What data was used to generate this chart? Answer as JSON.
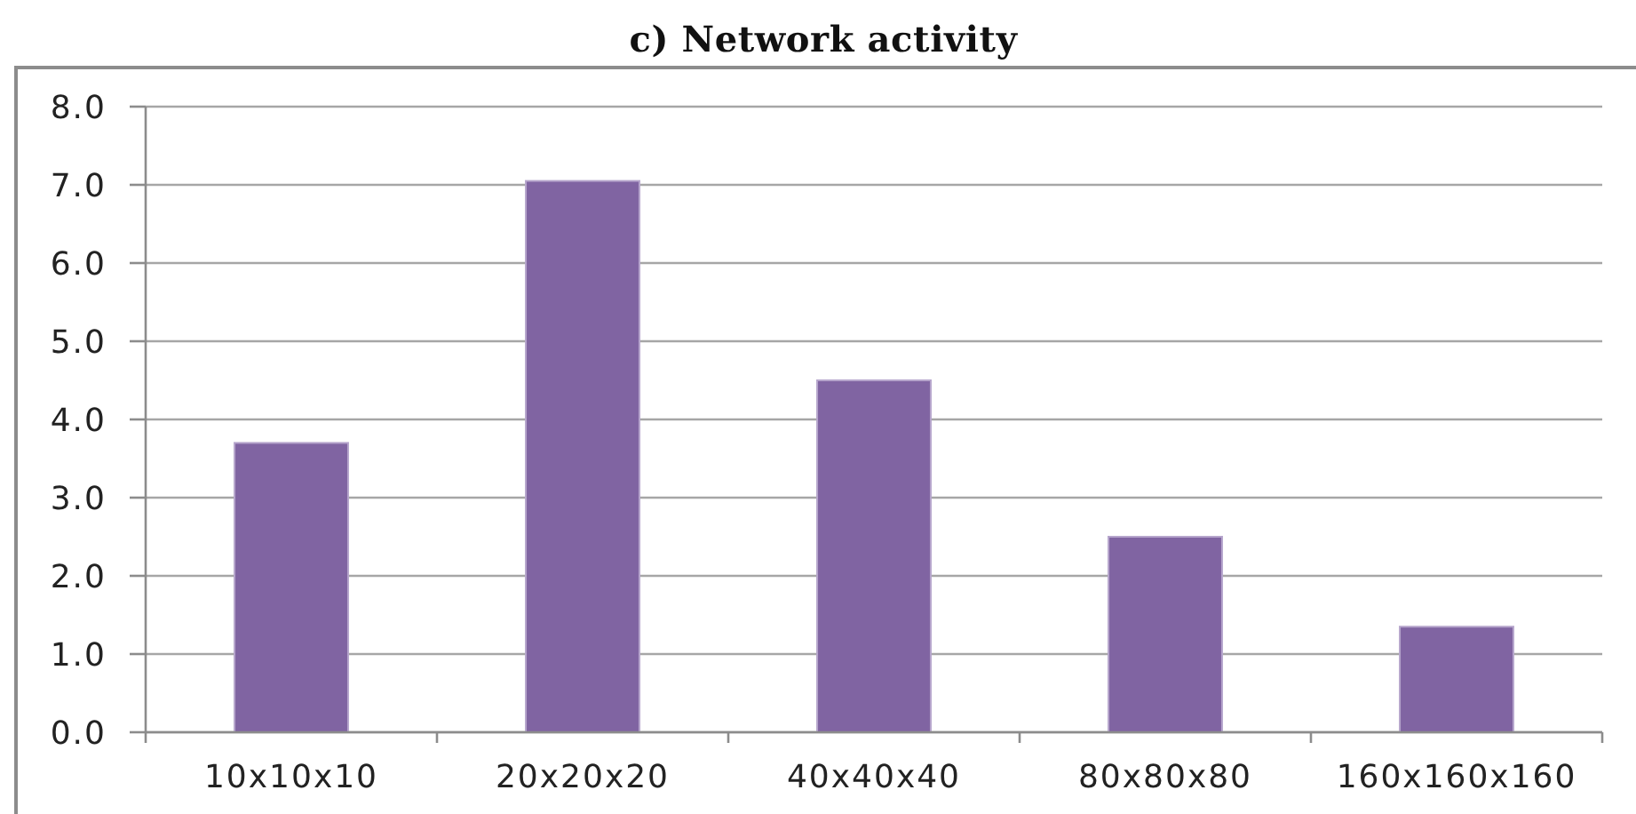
{
  "chart_data": {
    "type": "bar",
    "title": "c) Network activity",
    "categories": [
      "10x10x10",
      "20x20x20",
      "40x40x40",
      "80x80x80",
      "160x160x160"
    ],
    "values": [
      3.7,
      7.05,
      4.5,
      2.5,
      1.35
    ],
    "color": "#8064a2",
    "ylim": [
      0,
      8
    ],
    "yticks": [
      {
        "value": 0,
        "label": "0.0"
      },
      {
        "value": 1,
        "label": "1.0"
      },
      {
        "value": 2,
        "label": "2.0"
      },
      {
        "value": 3,
        "label": "3.0"
      },
      {
        "value": 4,
        "label": "4.0"
      },
      {
        "value": 5,
        "label": "5.0"
      },
      {
        "value": 6,
        "label": "6.0"
      },
      {
        "value": 7,
        "label": "7.0"
      },
      {
        "value": 8,
        "label": "8.0"
      }
    ],
    "grid": "y"
  }
}
